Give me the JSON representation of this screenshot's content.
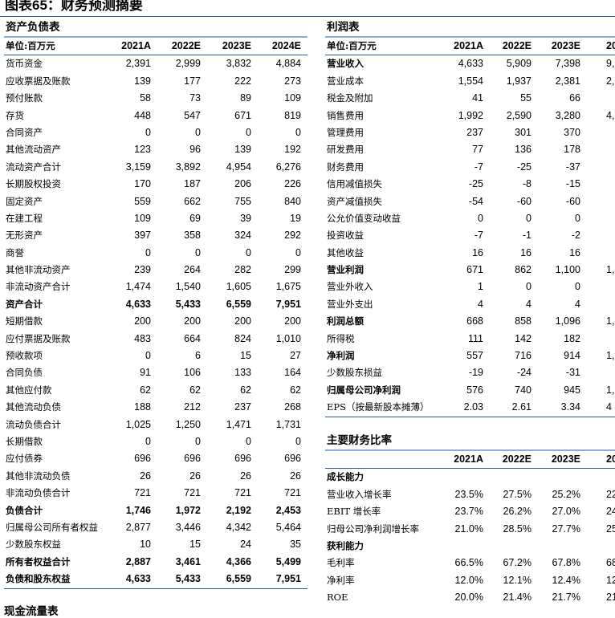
{
  "figure_title": "图表65：财务预测摘要",
  "balance": {
    "title": "资产负债表",
    "unit": "单位:百万元",
    "years": [
      "2021A",
      "2022E",
      "2023E",
      "2024E"
    ],
    "rows": [
      [
        "货币资金",
        "2,391",
        "2,999",
        "3,832",
        "4,884"
      ],
      [
        "应收票据及账款",
        "139",
        "177",
        "222",
        "273"
      ],
      [
        "预付账款",
        "58",
        "73",
        "89",
        "109"
      ],
      [
        "存货",
        "448",
        "547",
        "671",
        "819"
      ],
      [
        "合同资产",
        "0",
        "0",
        "0",
        "0"
      ],
      [
        "其他流动资产",
        "123",
        "96",
        "139",
        "192"
      ],
      [
        "流动资产合计",
        "3,159",
        "3,892",
        "4,954",
        "6,276"
      ],
      [
        "长期股权投资",
        "170",
        "187",
        "206",
        "226"
      ],
      [
        "固定资产",
        "559",
        "662",
        "755",
        "840"
      ],
      [
        "在建工程",
        "109",
        "69",
        "39",
        "19"
      ],
      [
        "无形资产",
        "397",
        "358",
        "324",
        "292"
      ],
      [
        "商誉",
        "0",
        "0",
        "0",
        "0"
      ],
      [
        "其他非流动资产",
        "239",
        "264",
        "282",
        "299"
      ],
      [
        "非流动资产合计",
        "1,474",
        "1,540",
        "1,605",
        "1,675"
      ],
      [
        "资产合计",
        "4,633",
        "5,433",
        "6,559",
        "7,951"
      ],
      [
        "短期借款",
        "200",
        "200",
        "200",
        "200"
      ],
      [
        "应付票据及账款",
        "483",
        "664",
        "824",
        "1,010"
      ],
      [
        "预收款项",
        "0",
        "6",
        "15",
        "27"
      ],
      [
        "合同负债",
        "91",
        "106",
        "133",
        "164"
      ],
      [
        "其他应付款",
        "62",
        "62",
        "62",
        "62"
      ],
      [
        "其他流动负债",
        "188",
        "212",
        "237",
        "268"
      ],
      [
        "流动负债合计",
        "1,025",
        "1,250",
        "1,471",
        "1,731"
      ],
      [
        "长期借款",
        "0",
        "0",
        "0",
        "0"
      ],
      [
        "应付债券",
        "696",
        "696",
        "696",
        "696"
      ],
      [
        "其他非流动负债",
        "26",
        "26",
        "26",
        "26"
      ],
      [
        "非流动负债合计",
        "721",
        "721",
        "721",
        "721"
      ],
      [
        "负债合计",
        "1,746",
        "1,972",
        "2,192",
        "2,453"
      ],
      [
        "归属母公司所有者权益",
        "2,877",
        "3,446",
        "4,342",
        "5,464"
      ],
      [
        "少数股东权益",
        "10",
        "15",
        "24",
        "35"
      ],
      [
        "所有者权益合计",
        "2,887",
        "3,461",
        "4,366",
        "5,499"
      ],
      [
        "负债和股东权益",
        "4,633",
        "5,433",
        "6,559",
        "7,951"
      ]
    ],
    "bold_rows": [
      14,
      26,
      29,
      30
    ]
  },
  "next_section_title": "现金流量表",
  "income": {
    "title": "利润表",
    "unit": "单位:百万元",
    "years": [
      "2021A",
      "2022E",
      "2023E",
      "202"
    ],
    "rows": [
      [
        "营业收入",
        "4,633",
        "5,909",
        "7,398",
        "9,"
      ],
      [
        "营业成本",
        "1,554",
        "1,937",
        "2,381",
        "2,"
      ],
      [
        "税金及附加",
        "41",
        "55",
        "66",
        ""
      ],
      [
        "销售费用",
        "1,992",
        "2,590",
        "3,280",
        "4,"
      ],
      [
        "管理费用",
        "237",
        "301",
        "370",
        ""
      ],
      [
        "研发费用",
        "77",
        "136",
        "178",
        ""
      ],
      [
        "财务费用",
        "-7",
        "-25",
        "-37",
        ""
      ],
      [
        "信用减值损失",
        "-25",
        "-8",
        "-15",
        ""
      ],
      [
        "资产减值损失",
        "-54",
        "-60",
        "-60",
        ""
      ],
      [
        "公允价值变动收益",
        "0",
        "0",
        "0",
        ""
      ],
      [
        "投资收益",
        "-7",
        "-1",
        "-2",
        ""
      ],
      [
        "其他收益",
        "16",
        "16",
        "16",
        ""
      ],
      [
        "营业利润",
        "671",
        "862",
        "1,100",
        "1,"
      ],
      [
        "营业外收入",
        "1",
        "0",
        "0",
        ""
      ],
      [
        "营业外支出",
        "4",
        "4",
        "4",
        ""
      ],
      [
        "利润总额",
        "668",
        "858",
        "1,096",
        "1,"
      ],
      [
        "所得税",
        "111",
        "142",
        "182",
        ""
      ],
      [
        "净利润",
        "557",
        "716",
        "914",
        "1,"
      ],
      [
        "少数股东损益",
        "-19",
        "-24",
        "-31",
        ""
      ],
      [
        "归属母公司净利润",
        "576",
        "740",
        "945",
        "1,"
      ],
      [
        "EPS（按最新股本摊薄）",
        "2.03",
        "2.61",
        "3.34",
        "4"
      ]
    ],
    "bold_rows": [
      0,
      12,
      15,
      17,
      19
    ]
  },
  "ratios": {
    "title": "主要财务比率",
    "years": [
      "2021A",
      "2022E",
      "2023E",
      "202"
    ],
    "rows": [
      [
        "成长能力",
        "",
        "",
        "",
        ""
      ],
      [
        "营业收入增长率",
        "23.5%",
        "27.5%",
        "25.2%",
        "22"
      ],
      [
        "EBIT 增长率",
        "23.7%",
        "26.2%",
        "27.0%",
        "24"
      ],
      [
        "归母公司净利润增长率",
        "21.0%",
        "28.5%",
        "27.7%",
        "25"
      ],
      [
        "获利能力",
        "",
        "",
        "",
        ""
      ],
      [
        "毛利率",
        "66.5%",
        "67.2%",
        "67.8%",
        "68"
      ],
      [
        "净利率",
        "12.0%",
        "12.1%",
        "12.4%",
        "12"
      ],
      [
        "ROE",
        "20.0%",
        "21.4%",
        "21.7%",
        "21"
      ]
    ],
    "bold_rows": [
      0,
      4
    ]
  }
}
